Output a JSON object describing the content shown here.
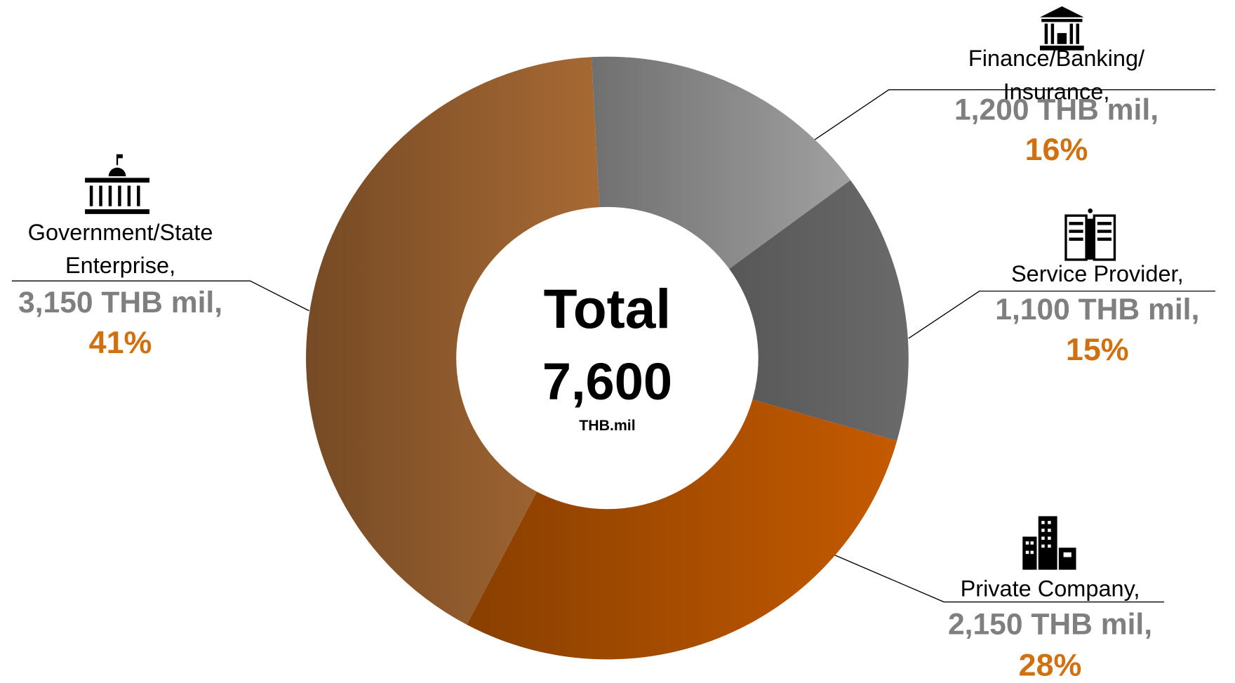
{
  "chart_data": {
    "type": "donut",
    "center_title": "Total",
    "total": 7600,
    "total_label": "7,600",
    "center_unit": "THB.mil",
    "categories": [
      "Finance/Banking/ Insurance,",
      "Service Provider,",
      "Private Company,",
      "Government/State Enterprise,"
    ],
    "values": [
      1200,
      1100,
      2150,
      3150
    ],
    "value_labels": [
      "1,200 THB mil,",
      "1,100 THB mil,",
      "2,150  THB mil,",
      "3,150 THB mil,"
    ],
    "percentages": [
      16,
      15,
      28,
      41
    ],
    "percentage_labels": [
      "16%",
      "15%",
      "28%",
      "41%"
    ],
    "colors": [
      "#a0a0a0",
      "#6a6a6a",
      "#c45a00",
      "#a86a34"
    ]
  }
}
